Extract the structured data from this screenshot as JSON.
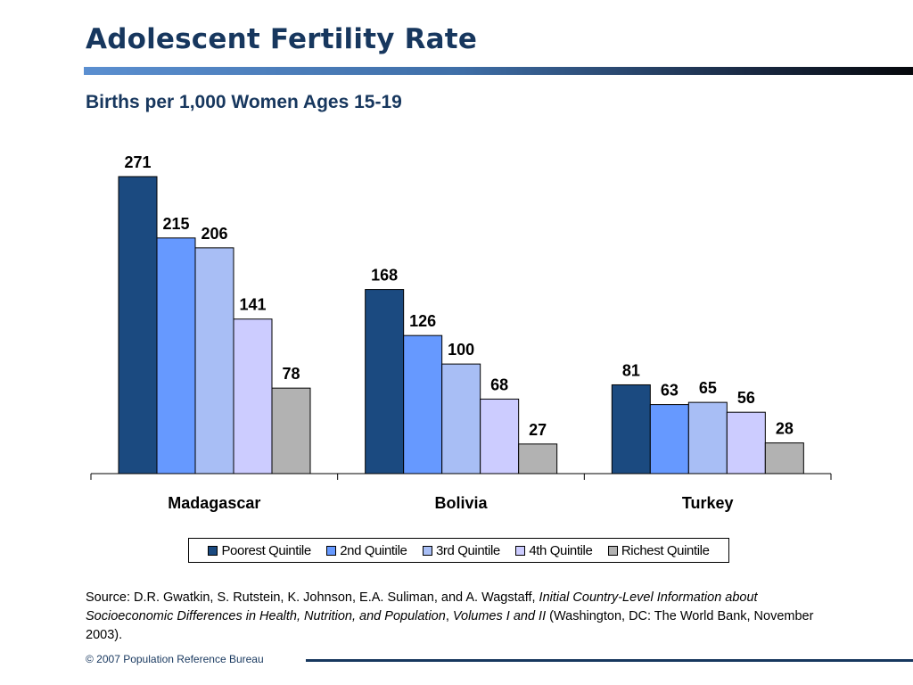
{
  "slide": {
    "title": "Adolescent Fertility Rate",
    "subtitle": "Births per 1,000 Women Ages 15-19"
  },
  "chart_data": {
    "type": "bar",
    "title": "Births per 1,000 Women Ages 15-19",
    "xlabel": "",
    "ylabel": "",
    "ylim": [
      0,
      271
    ],
    "grid": false,
    "legend_position": "bottom",
    "categories": [
      "Madagascar",
      "Bolivia",
      "Turkey"
    ],
    "series": [
      {
        "name": "Poorest Quintile",
        "color": "#1b4a80",
        "values": [
          271,
          168,
          81
        ]
      },
      {
        "name": "2nd Quintile",
        "color": "#6699ff",
        "values": [
          215,
          126,
          63
        ]
      },
      {
        "name": "3rd Quintile",
        "color": "#a8bef5",
        "values": [
          206,
          100,
          65
        ]
      },
      {
        "name": "4th Quintile",
        "color": "#ccccff",
        "values": [
          141,
          68,
          56
        ]
      },
      {
        "name": "Richest Quintile",
        "color": "#b2b2b2",
        "values": [
          78,
          27,
          28
        ]
      }
    ]
  },
  "source": {
    "prefix": "Source: D.R. Gwatkin, S. Rutstein, K. Johnson, E.A. Suliman, and A. Wagstaff, ",
    "title_italic": "Initial Country-Level Information about Socioeconomic Differences in Health, Nutrition, and Population",
    "separator": ", ",
    "volumes_italic": "Volumes I and II",
    "suffix": " (Washington, DC: The World Bank, November 2003)."
  },
  "footer": {
    "credit": "© 2007 Population Reference Bureau"
  }
}
